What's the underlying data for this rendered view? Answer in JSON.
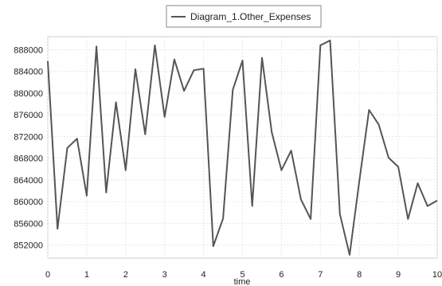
{
  "chart_data": {
    "type": "line",
    "title": "",
    "xlabel": "time",
    "ylabel": "",
    "xlim": [
      0,
      10
    ],
    "ylim": [
      849600,
      890400
    ],
    "x_ticks": [
      "0",
      "1",
      "2",
      "3",
      "4",
      "5",
      "6",
      "7",
      "8",
      "9",
      "10"
    ],
    "y_ticks": [
      "852000",
      "856000",
      "860000",
      "864000",
      "868000",
      "872000",
      "876000",
      "880000",
      "884000",
      "888000"
    ],
    "grid": true,
    "legend_position": "top-center",
    "series": [
      {
        "name": "Diagram_1.Other_Expenses",
        "color": "#555555",
        "x": [
          0,
          0.25,
          0.5,
          0.75,
          1.0,
          1.25,
          1.5,
          1.75,
          2.0,
          2.25,
          2.5,
          2.75,
          3.0,
          3.25,
          3.5,
          3.75,
          4.0,
          4.25,
          4.5,
          4.75,
          5.0,
          5.25,
          5.5,
          5.75,
          6.0,
          6.25,
          6.5,
          6.75,
          7.0,
          7.25,
          7.5,
          7.75,
          8.0,
          8.25,
          8.5,
          8.75,
          9.0,
          9.25,
          9.5,
          9.75,
          10.0
        ],
        "values": [
          885900,
          855000,
          869900,
          871600,
          861100,
          888600,
          861700,
          878300,
          865800,
          884400,
          872400,
          888800,
          875600,
          886200,
          880400,
          884200,
          884500,
          851800,
          856900,
          880600,
          886000,
          859200,
          886500,
          872800,
          865800,
          869400,
          860400,
          856800,
          888800,
          889700,
          857700,
          850200,
          863800,
          876900,
          874200,
          868100,
          866400,
          856800,
          863400,
          859200,
          860200
        ]
      }
    ]
  }
}
